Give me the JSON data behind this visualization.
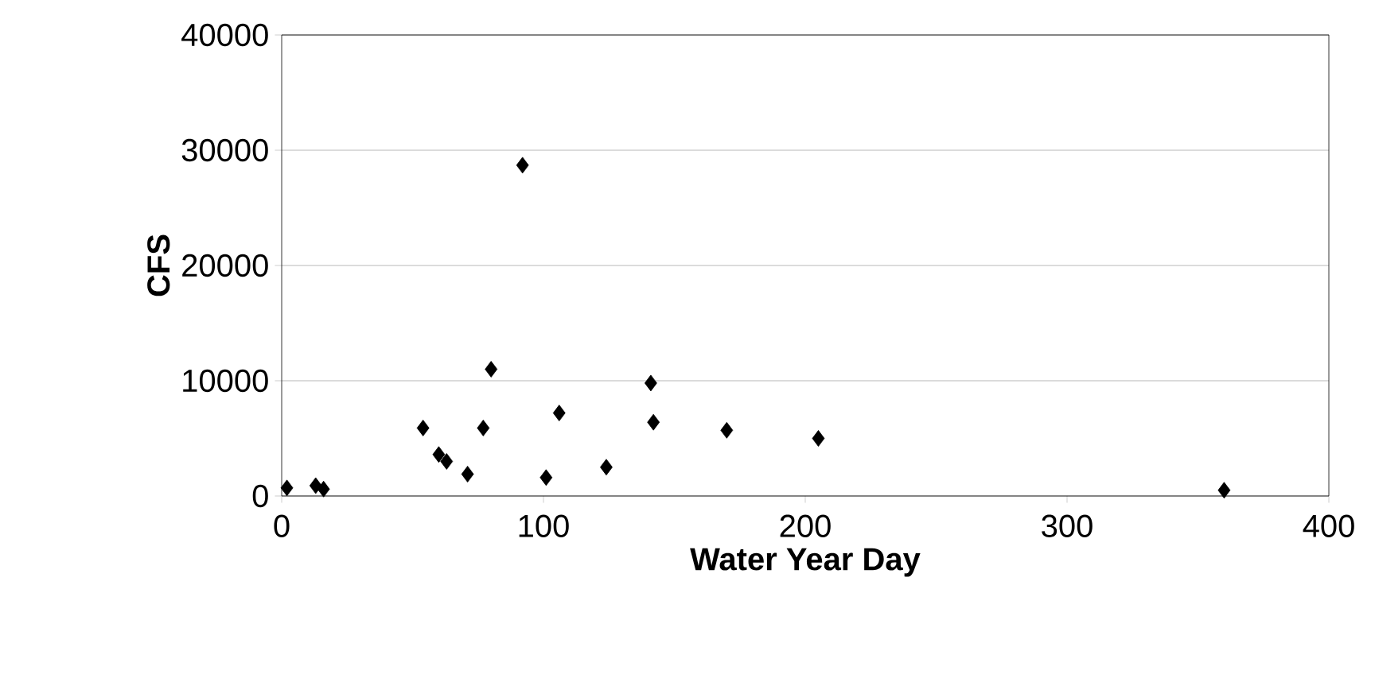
{
  "chart_data": {
    "type": "scatter",
    "xlabel": "Water Year Day",
    "ylabel": "CFS",
    "x": [
      2,
      13,
      16,
      54,
      60,
      63,
      71,
      77,
      80,
      92,
      101,
      106,
      124,
      141,
      142,
      170,
      205,
      360
    ],
    "values": [
      700,
      900,
      600,
      5900,
      3600,
      3000,
      1900,
      5900,
      11000,
      28700,
      1600,
      7200,
      2500,
      9800,
      6400,
      5700,
      5000,
      500
    ],
    "color": "#000000",
    "marker": "diamond",
    "grid": "y",
    "xlim": [
      0,
      400
    ],
    "xticks": [
      0,
      100,
      200,
      300,
      400
    ],
    "ylim": [
      0,
      40000
    ],
    "yticks": [
      0,
      10000,
      20000,
      30000,
      40000
    ]
  }
}
